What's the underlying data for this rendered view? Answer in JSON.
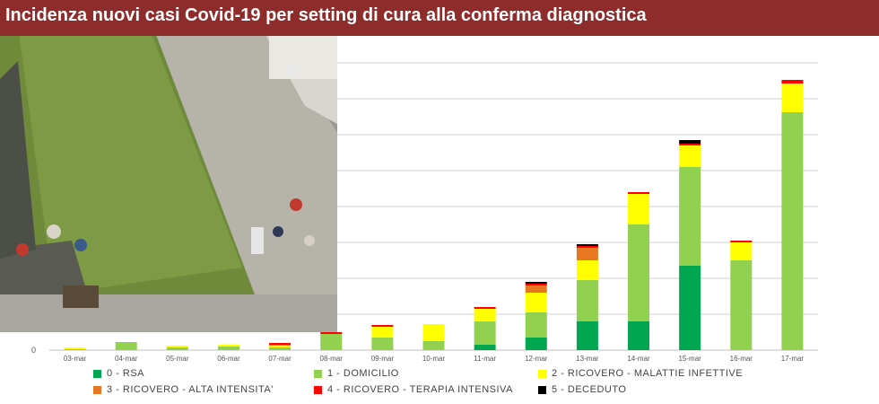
{
  "title": "Incidenza nuovi casi Covid-19 per setting di cura alla conferma diagnostica",
  "colors": {
    "title_bar": "#8e2b2b",
    "RSA": "#00a650",
    "DOMICILIO": "#92d050",
    "MALATTIE_INFETTIVE": "#ffff00",
    "ALTA_INTENSITA": "#e87722",
    "TERAPIA_INTENSIVA": "#ff0000",
    "DECEDUTO": "#000000"
  },
  "photo": {
    "icon": "outdoor-courtyard-photo"
  },
  "chart_data": {
    "type": "bar",
    "stacked": true,
    "categories": [
      "03-mar",
      "04-mar",
      "05-mar",
      "06-mar",
      "07-mar",
      "08-mar",
      "09-mar",
      "10-mar",
      "11-mar",
      "12-mar",
      "13-mar",
      "14-mar",
      "15-mar",
      "16-mar",
      "17-mar"
    ],
    "y_tick_labels": [
      "0"
    ],
    "ylim": [
      0,
      320
    ],
    "grid": true,
    "legend_position": "bottom",
    "series": [
      {
        "name": "0 - RSA",
        "color": "#00a650",
        "values": [
          0,
          0,
          0,
          0,
          0,
          0,
          0,
          0,
          6,
          14,
          32,
          32,
          94,
          0,
          0
        ]
      },
      {
        "name": "1 - DOMICILIO",
        "color": "#92d050",
        "values": [
          1,
          9,
          3,
          4,
          3,
          18,
          14,
          10,
          26,
          28,
          46,
          108,
          110,
          100,
          265
        ]
      },
      {
        "name": "2 - RICOVERO - MALATTIE INFETTIVE",
        "color": "#ffff00",
        "values": [
          2,
          0,
          2,
          2,
          2,
          0,
          12,
          19,
          14,
          22,
          22,
          34,
          24,
          20,
          32
        ]
      },
      {
        "name": "3 - RICOVERO - ALTA INTENSITA'",
        "color": "#e87722",
        "values": [
          0,
          0,
          0,
          0,
          1,
          0,
          0,
          0,
          0,
          8,
          14,
          0,
          0,
          0,
          0
        ]
      },
      {
        "name": "4 - RICOVERO - TERAPIA INTENSIVA",
        "color": "#ff0000",
        "values": [
          0,
          0,
          0,
          0,
          2,
          2,
          2,
          0,
          2,
          2,
          2,
          2,
          2,
          2,
          4
        ]
      },
      {
        "name": "5 - DECEDUTO",
        "color": "#000000",
        "values": [
          0,
          0,
          0,
          0,
          0,
          0,
          0,
          0,
          0,
          2,
          2,
          0,
          4,
          0,
          0
        ]
      }
    ]
  },
  "legend": [
    {
      "label": "0 - RSA",
      "color": "#00a650"
    },
    {
      "label": "1 - DOMICILIO",
      "color": "#92d050"
    },
    {
      "label": "2 - RICOVERO - MALATTIE INFETTIVE",
      "color": "#ffff00"
    },
    {
      "label": "3 - RICOVERO - ALTA INTENSITA'",
      "color": "#e87722"
    },
    {
      "label": "4 - RICOVERO - TERAPIA INTENSIVA",
      "color": "#ff0000"
    },
    {
      "label": "5 - DECEDUTO",
      "color": "#000000"
    }
  ]
}
